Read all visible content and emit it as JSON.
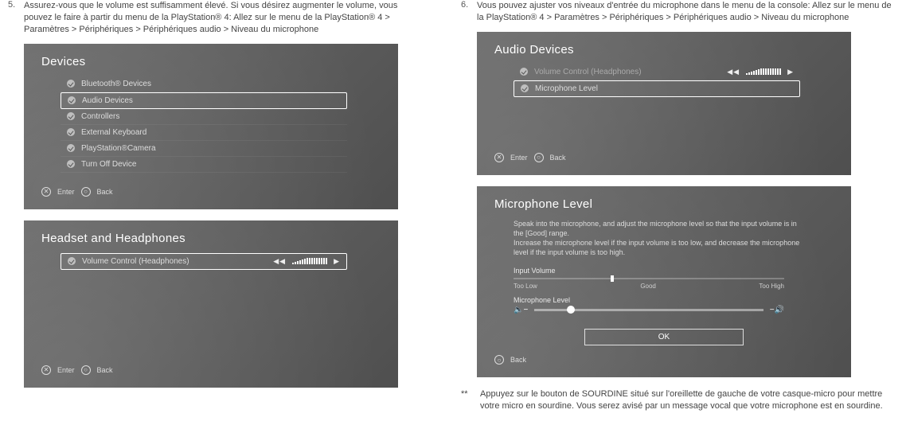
{
  "left": {
    "step_num": "5.",
    "step_text": "Assurez-vous que le volume est suffisamment élevé. Si vous désirez augmenter le volume, vous pouvez le faire à partir du menu de la PlayStation® 4: Allez sur le menu de la PlayStation® 4 > Paramètres > Périphériques > Périphériques audio > Niveau du microphone",
    "devices": {
      "title": "Devices",
      "items": [
        "Bluetooth® Devices",
        "Audio Devices",
        "Controllers",
        "External Keyboard",
        "PlayStation®Camera",
        "Turn Off Device"
      ],
      "selected_index": 1,
      "legend": {
        "enter": "Enter",
        "back": "Back"
      }
    },
    "headset": {
      "title": "Headset and Headphones",
      "item": "Volume Control (Headphones)",
      "vol_bars": [
        2,
        3,
        4,
        5,
        6,
        7,
        8,
        8,
        8,
        8,
        8,
        8,
        8,
        8,
        8
      ],
      "legend": {
        "enter": "Enter",
        "back": "Back"
      }
    }
  },
  "right": {
    "step_num": "6.",
    "step_text": "Vous pouvez ajuster vos niveaux d'entrée du microphone dans le menu de la console: Allez sur le menu de la PlayStation® 4 > Paramètres > Périphériques > Périphériques audio > Niveau du microphone",
    "audio": {
      "title": "Audio Devices",
      "items": [
        "Volume Control (Headphones)",
        "Microphone Level"
      ],
      "selected_index": 1,
      "vol_bars": [
        2,
        3,
        4,
        5,
        6,
        7,
        8,
        8,
        8,
        8,
        8,
        8,
        8,
        8,
        8
      ],
      "legend": {
        "enter": "Enter",
        "back": "Back"
      }
    },
    "miclevel": {
      "title": "Microphone Level",
      "desc": "Speak into the microphone, and adjust the microphone level so that the input volume is in the [Good] range.\nIncrease the microphone level if the input volume is too low, and decrease the microphone level if the input volume is too high.",
      "input_label": "Input Volume",
      "range_labels": [
        "Too Low",
        "Good",
        "Too High"
      ],
      "thumb_pct": 36,
      "mic_label": "Microphone Level",
      "mic_minus": "➖−",
      "mic_plus": "−➕",
      "ok": "OK",
      "legend": {
        "back": "Back"
      }
    },
    "footnote_marker": "**",
    "footnote_text": "Appuyez sur le bouton de SOURDINE situé sur l'oreillette de gauche de votre casque-micro pour mettre votre micro en sourdine. Vous serez avisé par un message vocal que votre microphone est en sourdine."
  },
  "colors": {
    "panel_grad_from": "#6a6a6a",
    "panel_grad_to": "#4f4f4f",
    "text": "#333333"
  }
}
